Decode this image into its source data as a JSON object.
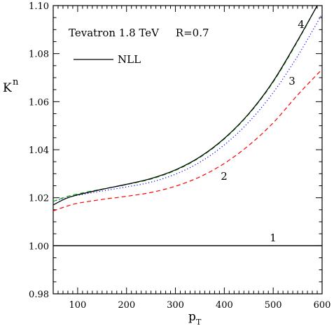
{
  "chart_data": {
    "type": "line",
    "title": "",
    "annotation": "Tevatron 1.8 TeV     R=0.7",
    "xlabel": "p",
    "xlabel_sub": "T",
    "ylabel": "K",
    "ylabel_sup": "n",
    "xlim": [
      50,
      600
    ],
    "ylim": [
      0.98,
      1.1
    ],
    "xticks": [
      100,
      200,
      300,
      400,
      500,
      600
    ],
    "yticks": [
      0.98,
      1.0,
      1.02,
      1.04,
      1.06,
      1.08,
      1.1
    ],
    "ytick_labels": [
      "0.98",
      "1.00",
      "1.02",
      "1.04",
      "1.06",
      "1.08",
      "1.10"
    ],
    "legend": {
      "label": "NLL",
      "placement": "top-left"
    },
    "series": [
      {
        "label": "1",
        "color": "#000000",
        "style": "solid",
        "x": [
          50,
          100,
          150,
          200,
          250,
          300,
          350,
          400,
          450,
          500,
          550,
          600
        ],
        "y": [
          1.0,
          1.0,
          1.0,
          1.0,
          1.0,
          1.0,
          1.0,
          1.0,
          1.0,
          1.0,
          1.0,
          1.0
        ]
      },
      {
        "label": "2",
        "color": "#ff0000",
        "style": "dashed",
        "x": [
          50,
          75,
          100,
          150,
          200,
          250,
          300,
          350,
          400,
          450,
          500,
          550,
          600
        ],
        "y": [
          1.0145,
          1.0163,
          1.0177,
          1.0193,
          1.0206,
          1.0222,
          1.0248,
          1.0287,
          1.0343,
          1.0418,
          1.0512,
          1.0628,
          1.0735
        ]
      },
      {
        "label": "3",
        "color": "#0000ff",
        "style": "dotted",
        "x": [
          50,
          75,
          100,
          150,
          200,
          250,
          300,
          350,
          400,
          450,
          500,
          550,
          600
        ],
        "y": [
          1.0185,
          1.0199,
          1.021,
          1.0228,
          1.0245,
          1.0265,
          1.0298,
          1.0348,
          1.042,
          1.0515,
          1.0638,
          1.079,
          1.0965
        ]
      },
      {
        "label": "",
        "color": "#00aa00",
        "style": "dashed",
        "x": [
          50,
          75,
          100,
          150,
          200,
          250,
          300,
          350,
          400,
          450,
          500,
          550,
          590
        ],
        "y": [
          1.0185,
          1.0203,
          1.0216,
          1.0236,
          1.0255,
          1.0278,
          1.0314,
          1.0368,
          1.0445,
          1.0548,
          1.0682,
          1.0852,
          1.1
        ]
      },
      {
        "label": "4",
        "color": "#000000",
        "style": "solid",
        "x": [
          50,
          75,
          100,
          150,
          200,
          250,
          300,
          350,
          400,
          450,
          500,
          550,
          590
        ],
        "y": [
          1.017,
          1.0196,
          1.0212,
          1.0235,
          1.0256,
          1.028,
          1.0316,
          1.037,
          1.0447,
          1.055,
          1.0685,
          1.0855,
          1.1
        ]
      }
    ]
  }
}
